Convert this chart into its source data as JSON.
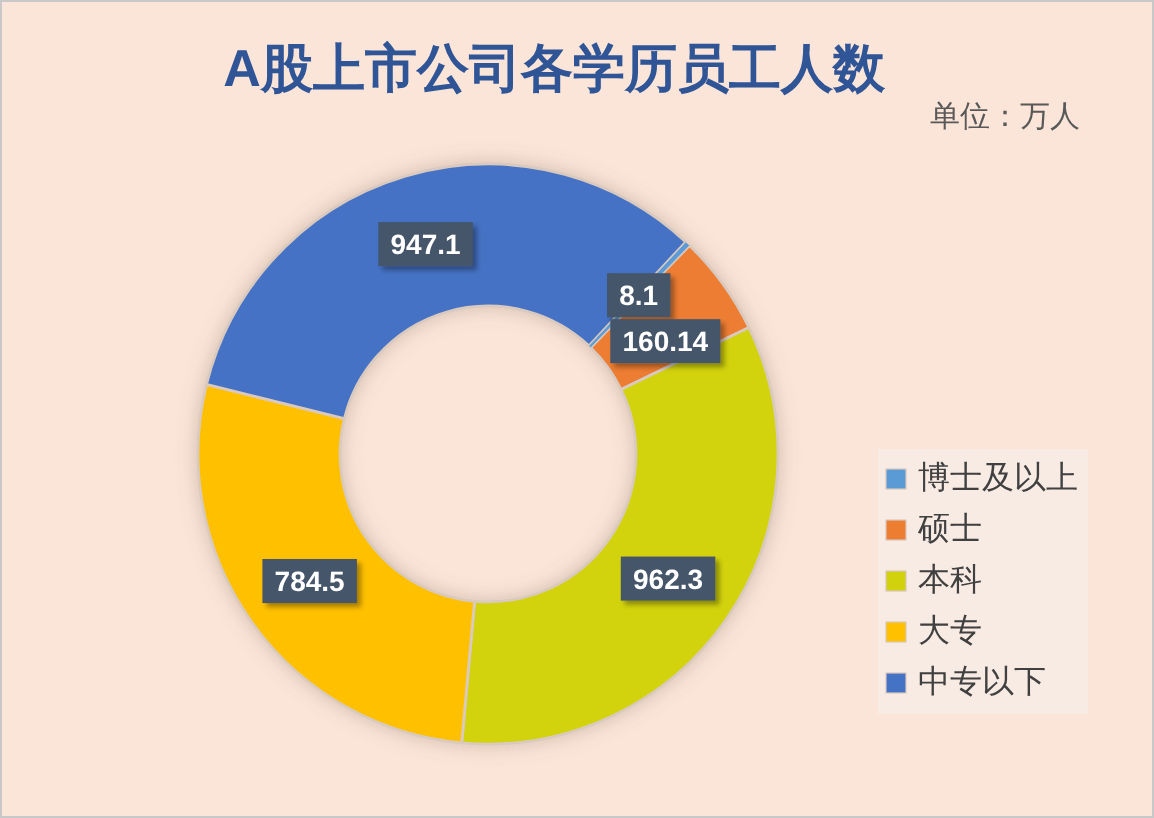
{
  "chart_data": {
    "type": "donut",
    "title": "A股上市公司各学历员工人数",
    "annotations": [
      "单位：万人"
    ],
    "categories": [
      "博士及以上",
      "硕士",
      "本科",
      "大专",
      "中专以下"
    ],
    "values": [
      8.1,
      160.14,
      962.3,
      784.5,
      947.1
    ],
    "colors": [
      "#5b9bd5",
      "#ed7d31",
      "#d2d20c",
      "#ffc000",
      "#4472c4"
    ],
    "data_labels": true,
    "legend": "right"
  }
}
